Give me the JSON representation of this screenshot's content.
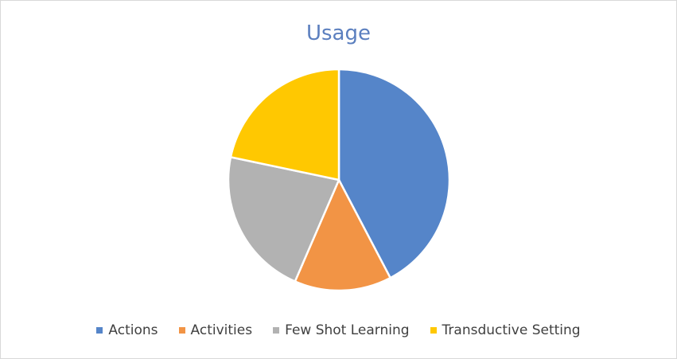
{
  "chart_data": {
    "type": "pie",
    "title": "Usage",
    "categories": [
      "Actions",
      "Activities",
      "Few Shot Learning",
      "Transductive Setting"
    ],
    "values": [
      42.3,
      14.2,
      21.8,
      21.7
    ],
    "colors": [
      "#5585c9",
      "#f29445",
      "#b2b2b2",
      "#ffc801"
    ],
    "legend_position": "bottom"
  }
}
